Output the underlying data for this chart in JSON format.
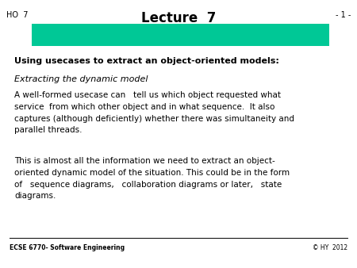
{
  "bg_color": "#ffffff",
  "title": "Lecture  7",
  "ho_label": "HO  7",
  "page_label": "- 1 -",
  "bar_color": "#00c896",
  "heading": "Using usecases to extract an object-oriented models:",
  "subheading": "Extracting the dynamic model",
  "para1": "A well-formed usecase can   tell us which object requested what\nservice  from which other object and in what sequence.  It also\ncaptures (although deficiently) whether there was simultaneity and\nparallel threads.",
  "para2": "This is almost all the information we need to extract an object-\noriented dynamic model of the situation. This could be in the form\nof   sequence diagrams,   collaboration diagrams or later,   state\ndiagrams.",
  "footer_left": "ECSE 6770- Software Engineering",
  "footer_right": "© HY  2012"
}
